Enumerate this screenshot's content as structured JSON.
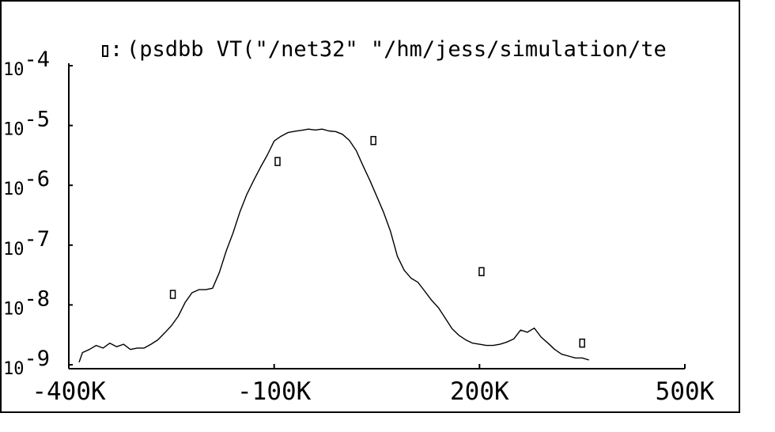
{
  "chart_data": {
    "type": "line",
    "title": "(psdbb VT(\"/net32\" \"/hm/jess/simulation/te",
    "legend_marker": "□",
    "legend_colon": ":",
    "xlabel": "",
    "ylabel": "",
    "xlim": [
      -400000,
      500000
    ],
    "ylog": true,
    "ylim": [
      1e-09,
      0.0001
    ],
    "x_tick_labels": [
      "-400K",
      "-100K",
      "200K",
      "500K"
    ],
    "x_tick_values": [
      -400000,
      -100000,
      200000,
      500000
    ],
    "y_tick_values": [
      0.0001,
      1e-05,
      1e-06,
      1e-07,
      1e-08,
      1e-09
    ],
    "y_tick_labels": [
      {
        "base": "10",
        "exp": "-4"
      },
      {
        "base": "10",
        "exp": "-5"
      },
      {
        "base": "10",
        "exp": "-6"
      },
      {
        "base": "10",
        "exp": "-7"
      },
      {
        "base": "10",
        "exp": "-8"
      },
      {
        "base": "10",
        "exp": "-9"
      }
    ],
    "series": [
      {
        "color": "#000000",
        "x": [
          -385000,
          -380000,
          -370000,
          -360000,
          -350000,
          -340000,
          -330000,
          -320000,
          -310000,
          -300000,
          -290000,
          -280000,
          -270000,
          -260000,
          -250000,
          -240000,
          -230000,
          -220000,
          -210000,
          -200000,
          -190000,
          -180000,
          -170000,
          -160000,
          -150000,
          -140000,
          -130000,
          -120000,
          -110000,
          -100000,
          -90000,
          -80000,
          -70000,
          -60000,
          -50000,
          -40000,
          -30000,
          -20000,
          -10000,
          0,
          10000,
          20000,
          30000,
          40000,
          50000,
          60000,
          70000,
          80000,
          90000,
          100000,
          110000,
          120000,
          130000,
          140000,
          150000,
          160000,
          170000,
          180000,
          190000,
          200000,
          210000,
          220000,
          230000,
          240000,
          250000,
          260000,
          270000,
          280000,
          290000,
          300000,
          310000,
          320000,
          330000,
          340000,
          350000,
          360000
        ],
        "y": [
          1.1e-09,
          1.6e-09,
          1.8e-09,
          2.1e-09,
          1.9e-09,
          2.3e-09,
          2e-09,
          2.2e-09,
          1.8e-09,
          1.9e-09,
          1.9e-09,
          2.2e-09,
          2.6e-09,
          3.4e-09,
          4.5e-09,
          6.5e-09,
          1.1e-08,
          1.6e-08,
          1.8e-08,
          1.8e-08,
          1.9e-08,
          3.5e-08,
          8e-08,
          1.6e-07,
          3.6e-07,
          7e-07,
          1.2e-06,
          2e-06,
          3.2e-06,
          5.5e-06,
          6.6e-06,
          7.6e-06,
          8e-06,
          8.3e-06,
          8.7e-06,
          8.4e-06,
          8.7e-06,
          8.1e-06,
          7.9e-06,
          7.1e-06,
          5.6e-06,
          3.8e-06,
          2.1e-06,
          1.2e-06,
          6.5e-07,
          3.5e-07,
          1.7e-07,
          6.5e-08,
          3.8e-08,
          2.8e-08,
          2.4e-08,
          1.7e-08,
          1.2e-08,
          9e-09,
          6e-09,
          4e-09,
          3.1e-09,
          2.6e-09,
          2.3e-09,
          2.2e-09,
          2.1e-09,
          2.1e-09,
          2.2e-09,
          2.4e-09,
          2.7e-09,
          3.8e-09,
          3.5e-09,
          4.1e-09,
          2.9e-09,
          2.3e-09,
          1.8e-09,
          1.5e-09,
          1.4e-09,
          1.3e-09,
          1.3e-09,
          1.2e-09
        ]
      }
    ],
    "markers": [
      {
        "x": -248000,
        "y": 1.5e-08
      },
      {
        "x": -95000,
        "y": 2.5e-06
      },
      {
        "x": 45000,
        "y": 5.6e-06
      },
      {
        "x": 203000,
        "y": 3.6e-08
      },
      {
        "x": 350000,
        "y": 2.3e-09
      }
    ]
  }
}
